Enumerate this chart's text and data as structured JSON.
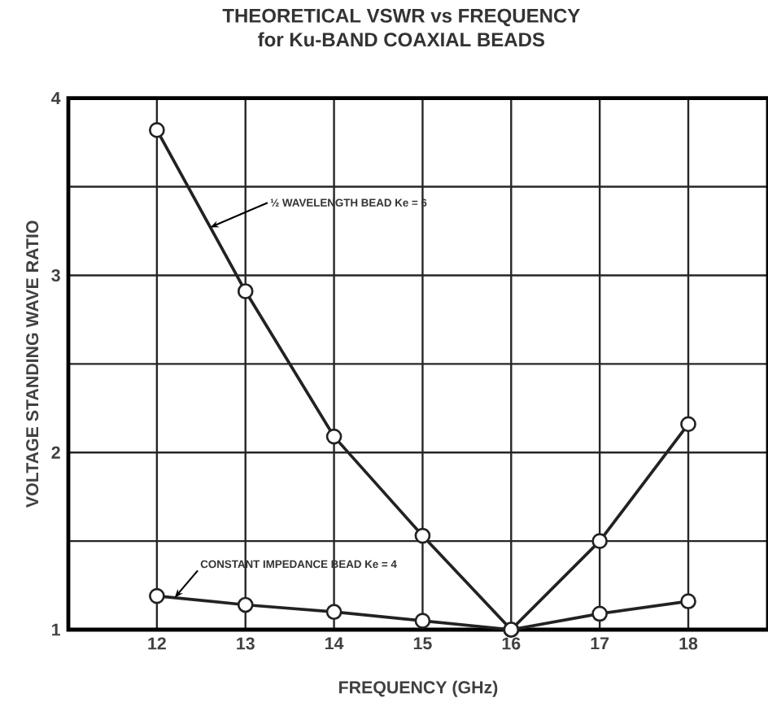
{
  "chart_data": {
    "type": "line",
    "title": "THEORETICAL VSWR vs FREQUENCY",
    "subtitle": "for Ku-BAND COAXIAL BEADS",
    "xlabel": "FREQUENCY (GHz)",
    "ylabel": "VOLTAGE STANDING WAVE RATIO",
    "x": [
      12,
      13,
      14,
      15,
      16,
      17,
      18
    ],
    "series": [
      {
        "color": "#222222",
        "values": [
          3.82,
          2.91,
          2.09,
          1.53,
          1.0,
          1.5,
          2.16
        ]
      },
      {
        "color": "#222222",
        "values": [
          1.19,
          1.14,
          1.1,
          1.05,
          1.0,
          1.09,
          1.16
        ]
      }
    ],
    "xlim": [
      11,
      18.9
    ],
    "ylim": [
      1,
      4
    ],
    "xticks": [
      12,
      13,
      14,
      15,
      16,
      17,
      18
    ],
    "yticks": [
      1,
      {
        "value": 1.5,
        "label": null
      },
      2,
      {
        "value": 2.5,
        "label": null
      },
      3,
      {
        "value": 3.5,
        "label": null
      },
      4
    ],
    "grid": true,
    "marker": "circle",
    "line_style": "solid",
    "annotations": [
      {
        "text": "½ WAVELENGTH BEAD Ke = 6",
        "x": 12.6,
        "y": 3.27
      },
      {
        "text": "CONSTANT IMPEDANCE BEAD Ke = 4",
        "x": 12.2,
        "y": 1.18
      }
    ]
  }
}
